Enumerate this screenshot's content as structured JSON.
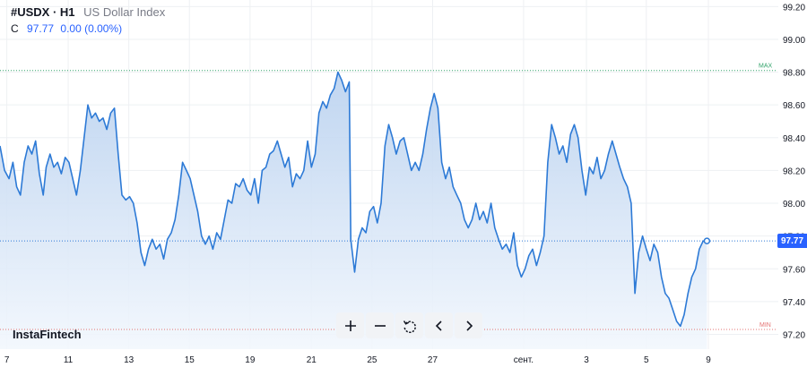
{
  "header": {
    "symbol": "#USDX · H1",
    "name": "US Dollar Index",
    "ohlc_label": "C",
    "close_value": "97.77",
    "change": "0.00 (0.00%)"
  },
  "brand": "InstaFintech",
  "toolbar": [
    {
      "name": "zoom-in-button",
      "icon": "plus"
    },
    {
      "name": "zoom-out-button",
      "icon": "minus"
    },
    {
      "name": "reset-button",
      "icon": "reset"
    },
    {
      "name": "scroll-left-button",
      "icon": "chevron-left"
    },
    {
      "name": "scroll-right-button",
      "icon": "chevron-right"
    }
  ],
  "colors": {
    "line": "#2d7ad6",
    "area_top": "#b9d1ef",
    "area_bottom": "#f2f7fd",
    "price_badge": "#2962ff",
    "max_line": "#33a36b",
    "min_line": "#e57373",
    "grid": "#eef0f3",
    "axis_text": "#131722"
  },
  "chart_data": {
    "type": "area",
    "ylim": [
      97.11,
      99.24
    ],
    "xlim": [
      0,
      100
    ],
    "y_ticks": [
      97.2,
      97.4,
      97.6,
      97.8,
      98.0,
      98.2,
      98.4,
      98.6,
      98.8,
      99.0,
      99.2
    ],
    "y_tick_labels": [
      "97.20",
      "97.40",
      "97.60",
      "97.80",
      "98.00",
      "98.20",
      "98.40",
      "98.60",
      "98.80",
      "99.00",
      "99.20"
    ],
    "x_ticks": [
      {
        "label": "7",
        "pos": 0.9
      },
      {
        "label": "11",
        "pos": 9.0
      },
      {
        "label": "13",
        "pos": 17.0
      },
      {
        "label": "15",
        "pos": 25.0
      },
      {
        "label": "19",
        "pos": 33.0
      },
      {
        "label": "21",
        "pos": 41.1
      },
      {
        "label": "25",
        "pos": 49.1
      },
      {
        "label": "27",
        "pos": 57.1
      },
      {
        "label": "сент.",
        "pos": 69.1
      },
      {
        "label": "3",
        "pos": 77.4
      },
      {
        "label": "5",
        "pos": 85.3
      },
      {
        "label": "9",
        "pos": 93.5
      }
    ],
    "last_value": 97.77,
    "last_value_label": "97.77",
    "max_label": "MAX",
    "min_label": "MIN",
    "max_value": 98.81,
    "min_value": 97.23,
    "grid": true,
    "series": [
      {
        "values": [
          [
            0,
            98.35
          ],
          [
            0.6,
            98.2
          ],
          [
            1.2,
            98.15
          ],
          [
            1.7,
            98.25
          ],
          [
            2.2,
            98.1
          ],
          [
            2.7,
            98.05
          ],
          [
            3.2,
            98.25
          ],
          [
            3.7,
            98.35
          ],
          [
            4.2,
            98.3
          ],
          [
            4.7,
            98.38
          ],
          [
            5.2,
            98.18
          ],
          [
            5.7,
            98.05
          ],
          [
            6.1,
            98.22
          ],
          [
            6.6,
            98.3
          ],
          [
            7.1,
            98.22
          ],
          [
            7.6,
            98.25
          ],
          [
            8.1,
            98.18
          ],
          [
            8.6,
            98.28
          ],
          [
            9.1,
            98.25
          ],
          [
            9.6,
            98.15
          ],
          [
            10.1,
            98.05
          ],
          [
            10.6,
            98.2
          ],
          [
            11.1,
            98.4
          ],
          [
            11.6,
            98.6
          ],
          [
            12.1,
            98.52
          ],
          [
            12.6,
            98.55
          ],
          [
            13.1,
            98.5
          ],
          [
            13.6,
            98.52
          ],
          [
            14.1,
            98.45
          ],
          [
            14.6,
            98.55
          ],
          [
            15.1,
            98.58
          ],
          [
            15.6,
            98.3
          ],
          [
            16.1,
            98.05
          ],
          [
            16.6,
            98.02
          ],
          [
            17.1,
            98.04
          ],
          [
            17.6,
            98.0
          ],
          [
            18.1,
            97.88
          ],
          [
            18.6,
            97.7
          ],
          [
            19.1,
            97.62
          ],
          [
            19.6,
            97.72
          ],
          [
            20.1,
            97.78
          ],
          [
            20.6,
            97.72
          ],
          [
            21.1,
            97.75
          ],
          [
            21.6,
            97.66
          ],
          [
            22.1,
            97.78
          ],
          [
            22.6,
            97.82
          ],
          [
            23.1,
            97.9
          ],
          [
            23.6,
            98.05
          ],
          [
            24.1,
            98.25
          ],
          [
            24.6,
            98.2
          ],
          [
            25.1,
            98.15
          ],
          [
            25.6,
            98.05
          ],
          [
            26.1,
            97.95
          ],
          [
            26.6,
            97.8
          ],
          [
            27.1,
            97.75
          ],
          [
            27.6,
            97.8
          ],
          [
            28.1,
            97.72
          ],
          [
            28.6,
            97.82
          ],
          [
            29.1,
            97.78
          ],
          [
            29.6,
            97.9
          ],
          [
            30.1,
            98.02
          ],
          [
            30.6,
            98.0
          ],
          [
            31.1,
            98.12
          ],
          [
            31.6,
            98.1
          ],
          [
            32.1,
            98.15
          ],
          [
            32.6,
            98.08
          ],
          [
            33.1,
            98.05
          ],
          [
            33.6,
            98.15
          ],
          [
            34.1,
            98.0
          ],
          [
            34.6,
            98.2
          ],
          [
            35.1,
            98.22
          ],
          [
            35.6,
            98.3
          ],
          [
            36.1,
            98.32
          ],
          [
            36.6,
            98.38
          ],
          [
            37.1,
            98.3
          ],
          [
            37.6,
            98.22
          ],
          [
            38.1,
            98.28
          ],
          [
            38.6,
            98.1
          ],
          [
            39.1,
            98.18
          ],
          [
            39.6,
            98.15
          ],
          [
            40.1,
            98.2
          ],
          [
            40.6,
            98.38
          ],
          [
            41.1,
            98.22
          ],
          [
            41.6,
            98.3
          ],
          [
            42.1,
            98.55
          ],
          [
            42.6,
            98.62
          ],
          [
            43.1,
            98.58
          ],
          [
            43.6,
            98.66
          ],
          [
            44.1,
            98.7
          ],
          [
            44.6,
            98.8
          ],
          [
            45.1,
            98.75
          ],
          [
            45.6,
            98.68
          ],
          [
            46.1,
            98.74
          ],
          [
            46.3,
            97.78
          ],
          [
            46.8,
            97.58
          ],
          [
            47.3,
            97.78
          ],
          [
            47.8,
            97.85
          ],
          [
            48.3,
            97.82
          ],
          [
            48.8,
            97.95
          ],
          [
            49.3,
            97.98
          ],
          [
            49.8,
            97.88
          ],
          [
            50.3,
            98.0
          ],
          [
            50.8,
            98.35
          ],
          [
            51.3,
            98.48
          ],
          [
            51.8,
            98.4
          ],
          [
            52.3,
            98.3
          ],
          [
            52.8,
            98.38
          ],
          [
            53.3,
            98.4
          ],
          [
            53.8,
            98.3
          ],
          [
            54.3,
            98.2
          ],
          [
            54.8,
            98.25
          ],
          [
            55.3,
            98.2
          ],
          [
            55.8,
            98.3
          ],
          [
            56.3,
            98.45
          ],
          [
            56.8,
            98.58
          ],
          [
            57.3,
            98.67
          ],
          [
            57.8,
            98.58
          ],
          [
            58.3,
            98.25
          ],
          [
            58.8,
            98.15
          ],
          [
            59.3,
            98.22
          ],
          [
            59.8,
            98.1
          ],
          [
            60.3,
            98.05
          ],
          [
            60.8,
            98.0
          ],
          [
            61.3,
            97.9
          ],
          [
            61.8,
            97.85
          ],
          [
            62.3,
            97.9
          ],
          [
            62.8,
            98.0
          ],
          [
            63.3,
            97.9
          ],
          [
            63.8,
            97.95
          ],
          [
            64.3,
            97.88
          ],
          [
            64.8,
            98.0
          ],
          [
            65.3,
            97.85
          ],
          [
            65.8,
            97.78
          ],
          [
            66.3,
            97.72
          ],
          [
            66.8,
            97.75
          ],
          [
            67.3,
            97.7
          ],
          [
            67.8,
            97.82
          ],
          [
            68.3,
            97.62
          ],
          [
            68.8,
            97.55
          ],
          [
            69.3,
            97.6
          ],
          [
            69.8,
            97.68
          ],
          [
            70.3,
            97.72
          ],
          [
            70.8,
            97.62
          ],
          [
            71.3,
            97.7
          ],
          [
            71.8,
            97.8
          ],
          [
            72.3,
            98.25
          ],
          [
            72.8,
            98.48
          ],
          [
            73.3,
            98.4
          ],
          [
            73.8,
            98.3
          ],
          [
            74.3,
            98.35
          ],
          [
            74.8,
            98.25
          ],
          [
            75.3,
            98.42
          ],
          [
            75.8,
            98.48
          ],
          [
            76.3,
            98.4
          ],
          [
            76.8,
            98.2
          ],
          [
            77.3,
            98.05
          ],
          [
            77.8,
            98.22
          ],
          [
            78.3,
            98.18
          ],
          [
            78.8,
            98.28
          ],
          [
            79.3,
            98.15
          ],
          [
            79.8,
            98.2
          ],
          [
            80.3,
            98.3
          ],
          [
            80.8,
            98.38
          ],
          [
            81.3,
            98.3
          ],
          [
            81.8,
            98.22
          ],
          [
            82.3,
            98.15
          ],
          [
            82.8,
            98.1
          ],
          [
            83.3,
            98.0
          ],
          [
            83.8,
            97.45
          ],
          [
            84.3,
            97.7
          ],
          [
            84.8,
            97.8
          ],
          [
            85.3,
            97.72
          ],
          [
            85.8,
            97.65
          ],
          [
            86.3,
            97.75
          ],
          [
            86.8,
            97.7
          ],
          [
            87.3,
            97.55
          ],
          [
            87.8,
            97.45
          ],
          [
            88.3,
            97.42
          ],
          [
            88.8,
            97.35
          ],
          [
            89.3,
            97.28
          ],
          [
            89.8,
            97.25
          ],
          [
            90.3,
            97.32
          ],
          [
            90.8,
            97.45
          ],
          [
            91.3,
            97.55
          ],
          [
            91.8,
            97.6
          ],
          [
            92.3,
            97.72
          ],
          [
            92.8,
            97.77
          ],
          [
            93.3,
            97.77
          ]
        ]
      }
    ]
  }
}
